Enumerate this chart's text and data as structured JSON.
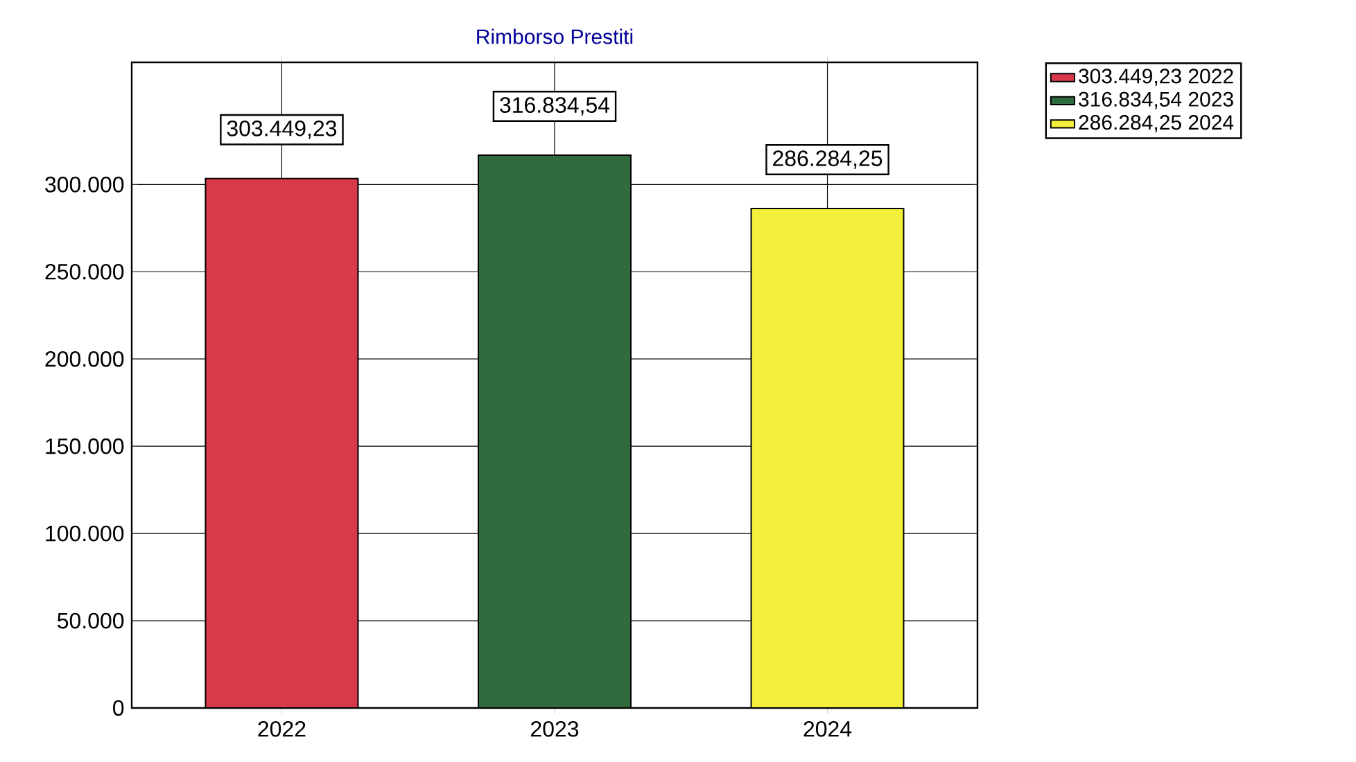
{
  "chart_data": {
    "type": "bar",
    "title": "Rimborso Prestiti",
    "categories": [
      "2022",
      "2023",
      "2024"
    ],
    "series": [
      {
        "name": "303.449,23 2022",
        "color": "#d83a4c",
        "values": [
          303449.23,
          null,
          null
        ],
        "value_labels": [
          "303.449,23",
          null,
          null
        ]
      },
      {
        "name": "316.834,54 2023",
        "color": "#2f6b3c",
        "values": [
          null,
          316834.54,
          null
        ],
        "value_labels": [
          null,
          "316.834,54",
          null
        ]
      },
      {
        "name": "286.284,25 2024",
        "color": "#f4ee3c",
        "values": [
          null,
          null,
          286284.25
        ],
        "value_labels": [
          null,
          null,
          "286.284,25"
        ]
      }
    ],
    "ylim": [
      0,
      370000
    ],
    "yticks": [
      {
        "value": 0,
        "label": "0"
      },
      {
        "value": 50000,
        "label": "50.000"
      },
      {
        "value": 100000,
        "label": "100.000"
      },
      {
        "value": 150000,
        "label": "150.000"
      },
      {
        "value": 200000,
        "label": "200.000"
      },
      {
        "value": 250000,
        "label": "250.000"
      },
      {
        "value": 300000,
        "label": "300.000"
      }
    ],
    "grid": true,
    "legend": "top right"
  }
}
